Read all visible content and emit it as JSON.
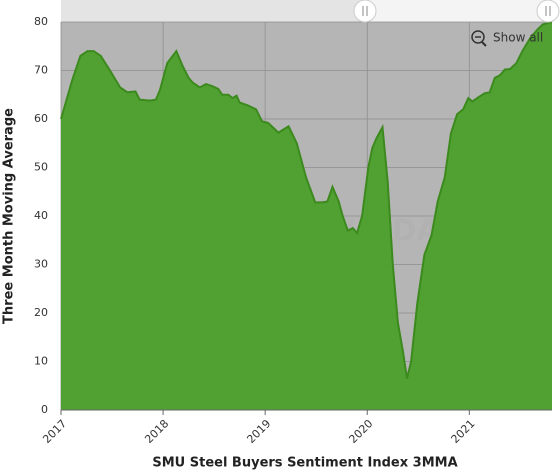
{
  "chart_data": {
    "type": "area",
    "xlabel": "SMU Steel Buyers Sentiment Index 3MMA",
    "ylabel": "Three Month Moving Average",
    "watermark": "STEEL MARKET UPDATE",
    "reset_zoom_label": "Show all",
    "color": "#4b9f2b",
    "line_color": "#3c8a1e",
    "grid": true,
    "x": [
      2017.0,
      2017.11,
      2017.19,
      2017.26,
      2017.32,
      2017.39,
      2017.48,
      2017.58,
      2017.65,
      2017.73,
      2017.77,
      2017.87,
      2017.93,
      2017.97,
      2018.04,
      2018.13,
      2018.19,
      2018.25,
      2018.29,
      2018.36,
      2018.42,
      2018.48,
      2018.54,
      2018.58,
      2018.64,
      2018.68,
      2018.72,
      2018.75,
      2018.83,
      2018.91,
      2018.97,
      2019.03,
      2019.13,
      2019.23,
      2019.31,
      2019.4,
      2019.49,
      2019.56,
      2019.61,
      2019.66,
      2019.72,
      2019.76,
      2019.81,
      2019.86,
      2019.9,
      2019.95,
      2020.01,
      2020.05,
      2020.09,
      2020.15,
      2020.2,
      2020.25,
      2020.3,
      2020.35,
      2020.39,
      2020.43,
      2020.49,
      2020.56,
      2020.63,
      2020.69,
      2020.76,
      2020.82,
      2020.88,
      2020.94,
      2020.99,
      2021.03,
      2021.09,
      2021.15,
      2021.2,
      2021.25,
      2021.3,
      2021.35,
      2021.4,
      2021.46,
      2021.52,
      2021.6,
      2021.67,
      2021.72,
      2021.81
    ],
    "values": [
      60,
      68,
      73,
      74,
      74,
      73,
      70,
      66.5,
      65.5,
      65.7,
      64,
      63.8,
      64,
      66,
      71.5,
      74,
      71,
      68.5,
      67.5,
      66.5,
      67.2,
      66.8,
      66.2,
      65,
      65,
      64.3,
      64.8,
      63.4,
      62.8,
      62,
      59.5,
      59.2,
      57.2,
      58.5,
      55,
      48,
      42.8,
      42.8,
      43,
      46,
      43,
      40,
      37,
      37.5,
      36.5,
      40,
      50,
      54,
      56,
      58.3,
      47,
      30,
      18,
      12,
      6.5,
      10,
      22,
      32,
      36,
      43,
      48,
      57,
      61,
      62,
      64.3,
      63.6,
      64.5,
      65.3,
      65.5,
      68.5,
      69,
      70.2,
      70.3,
      71.5,
      74,
      76.8,
      78.5,
      79.5,
      80
    ],
    "xlim": [
      2017,
      2021.81
    ],
    "xticks": [
      2017,
      2018,
      2019,
      2020,
      2021
    ],
    "ylim": [
      0,
      80
    ],
    "yticks": [
      0,
      10,
      20,
      30,
      40,
      50,
      60,
      70,
      80
    ]
  }
}
